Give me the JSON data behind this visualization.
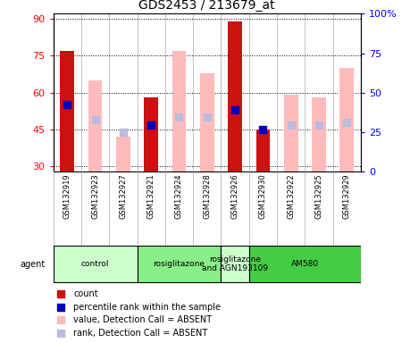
{
  "title": "GDS2453 / 213679_at",
  "samples": [
    "GSM132919",
    "GSM132923",
    "GSM132927",
    "GSM132921",
    "GSM132924",
    "GSM132928",
    "GSM132926",
    "GSM132930",
    "GSM132922",
    "GSM132925",
    "GSM132929"
  ],
  "ylim_left": [
    28,
    92
  ],
  "ylim_right": [
    0,
    100
  ],
  "yticks_left": [
    30,
    45,
    60,
    75,
    90
  ],
  "yticks_right": [
    0,
    25,
    50,
    75,
    100
  ],
  "ytick_labels_right": [
    "0",
    "25",
    "50",
    "75",
    "100%"
  ],
  "red_bars": [
    77,
    0,
    0,
    58,
    0,
    0,
    89,
    45,
    0,
    0,
    0
  ],
  "blue_dots": [
    55,
    0,
    0,
    47,
    0,
    0,
    53,
    45,
    0,
    0,
    0
  ],
  "pink_bars": [
    0,
    65,
    42,
    0,
    77,
    68,
    0,
    0,
    59,
    58,
    70
  ],
  "lavender_dots": [
    0,
    49,
    44,
    0,
    50,
    50,
    0,
    0,
    47,
    47,
    48
  ],
  "bar_width": 0.5,
  "red_color": "#cc1111",
  "blue_color": "#0000bb",
  "pink_color": "#ffbbbb",
  "lavender_color": "#bbbbdd",
  "grid_color": "#000000",
  "title_fontsize": 10,
  "axis_fontsize": 8,
  "legend_fontsize": 7,
  "groups": [
    {
      "label": "control",
      "start": 0,
      "end": 2,
      "color": "#ccffcc"
    },
    {
      "label": "rosiglitazone",
      "start": 3,
      "end": 5,
      "color": "#88ee88"
    },
    {
      "label": "rosiglitazone\nand AGN193109",
      "start": 6,
      "end": 6,
      "color": "#ccffcc"
    },
    {
      "label": "AM580",
      "start": 7,
      "end": 10,
      "color": "#44cc44"
    }
  ]
}
